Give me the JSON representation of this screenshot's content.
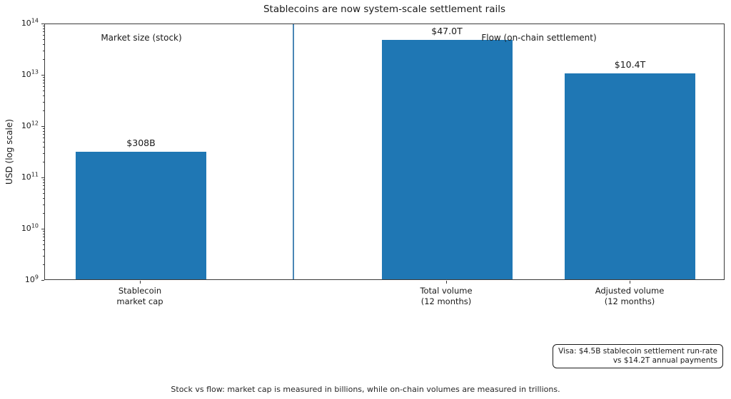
{
  "chart_data": {
    "type": "bar",
    "title": "Stablecoins are now system-scale settlement rails",
    "ylabel": "USD (log scale)",
    "xlabel": "",
    "yscale": "log",
    "ylim": [
      1000000000.0,
      100000000000000.0
    ],
    "grid": false,
    "legend": false,
    "categories": [
      [
        "Stablecoin",
        "market cap"
      ],
      [
        "Total volume",
        "(12 months)"
      ],
      [
        "Adjusted volume",
        "(12 months)"
      ]
    ],
    "values": [
      308000000000.0,
      47000000000000.0,
      10400000000000.0
    ],
    "bar_value_labels": [
      "$308B",
      "$47.0T",
      "$10.4T"
    ],
    "ytick_labels": [
      {
        "base": "10",
        "exp": "14"
      },
      {
        "base": "10",
        "exp": "13"
      },
      {
        "base": "10",
        "exp": "12"
      },
      {
        "base": "10",
        "exp": "11"
      },
      {
        "base": "10",
        "exp": "10"
      },
      {
        "base": "10",
        "exp": "9"
      }
    ],
    "group_annotations": [
      {
        "label": "Market size (stock)"
      },
      {
        "label": "Flow (on-chain settlement)"
      }
    ],
    "annotation_box": {
      "line1": "Visa: $4.5B stablecoin settlement run-rate",
      "line2": "vs $14.2T annual payments"
    },
    "footnote": "Stock vs flow: market cap is measured in billions, while on-chain volumes are measured in trillions.",
    "colors": {
      "bar": "#1f77b4",
      "divider": "#4a86b5",
      "spine": "#3a3a3a",
      "text": "#1a1a1a"
    }
  }
}
